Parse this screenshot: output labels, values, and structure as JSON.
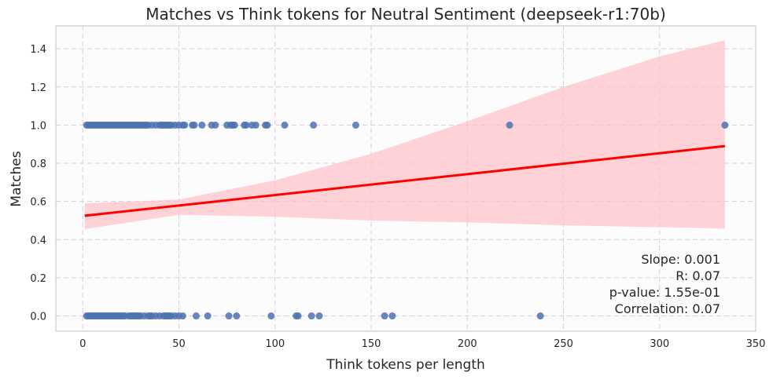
{
  "chart_data": {
    "type": "scatter",
    "title": "Matches vs Think tokens for Neutral Sentiment (deepseek-r1:70b)",
    "xlabel": "Think tokens per length",
    "ylabel": "Matches",
    "xlim": [
      -14,
      350
    ],
    "ylim": [
      -0.08,
      1.52
    ],
    "xticks": [
      "0",
      "50",
      "100",
      "150",
      "200",
      "250",
      "300",
      "350"
    ],
    "yticks": [
      "0.0",
      "0.2",
      "0.4",
      "0.6",
      "0.8",
      "1.0",
      "1.2",
      "1.4"
    ],
    "xtick_values": [
      0,
      50,
      100,
      150,
      200,
      250,
      300,
      350
    ],
    "ytick_values": [
      0,
      0.2,
      0.4,
      0.6,
      0.8,
      1.0,
      1.2,
      1.4
    ],
    "grid": true,
    "points_match_1": [
      2,
      3,
      4,
      5,
      6,
      7,
      8,
      9,
      10,
      11,
      12,
      13,
      14,
      15,
      16,
      17,
      18,
      19,
      20,
      21,
      22,
      23,
      24,
      25,
      26,
      27,
      28,
      29,
      30,
      31,
      32,
      33,
      34,
      36,
      38,
      40,
      41,
      42,
      43,
      44,
      45,
      46,
      48,
      50,
      52,
      53,
      57,
      58,
      62,
      67,
      69,
      75,
      77,
      78,
      79,
      84,
      85,
      88,
      90,
      95,
      96,
      105,
      120,
      142,
      222,
      334
    ],
    "points_match_0": [
      2,
      3,
      4,
      5,
      6,
      7,
      8,
      9,
      10,
      11,
      12,
      13,
      14,
      15,
      16,
      17,
      18,
      19,
      20,
      21,
      22,
      24,
      25,
      26,
      27,
      28,
      29,
      30,
      32,
      34,
      35,
      36,
      38,
      40,
      42,
      43,
      44,
      45,
      46,
      48,
      50,
      52,
      59,
      65,
      76,
      80,
      98,
      111,
      112,
      119,
      123,
      157,
      161,
      238
    ],
    "regression_line": {
      "x": [
        1,
        334
      ],
      "y": [
        0.525,
        0.89
      ]
    },
    "confidence_band": {
      "upper": [
        [
          1,
          0.59
        ],
        [
          50,
          0.61
        ],
        [
          100,
          0.71
        ],
        [
          150,
          0.85
        ],
        [
          200,
          1.02
        ],
        [
          250,
          1.2
        ],
        [
          300,
          1.36
        ],
        [
          334,
          1.445
        ]
      ],
      "lower": [
        [
          1,
          0.455
        ],
        [
          50,
          0.53
        ],
        [
          100,
          0.52
        ],
        [
          150,
          0.5
        ],
        [
          200,
          0.49
        ],
        [
          250,
          0.475
        ],
        [
          300,
          0.465
        ],
        [
          334,
          0.458
        ]
      ]
    },
    "annotations": [
      "Slope: 0.001",
      "R: 0.07",
      "p-value: 1.55e-01",
      "Correlation: 0.07"
    ],
    "colors": {
      "points": "#4c72b0",
      "line": "#ff0000",
      "band": "#ffc0c8",
      "grid": "#d8cde0",
      "background": "#fdfcfd"
    }
  }
}
